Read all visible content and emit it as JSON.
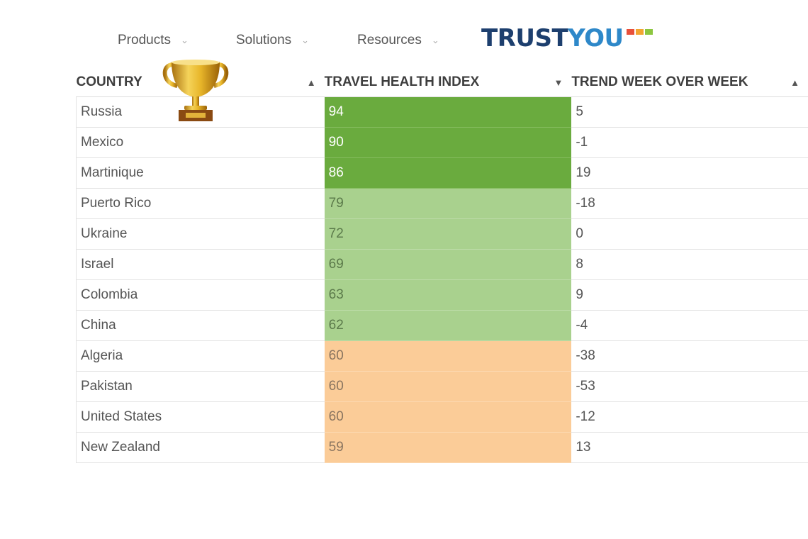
{
  "nav": {
    "items": [
      {
        "label": "Products",
        "icon": "chevron-down-icon"
      },
      {
        "label": "Solutions",
        "icon": "chevron-down-icon"
      },
      {
        "label": "Resources",
        "icon": "chevron-down-icon"
      }
    ]
  },
  "logo": {
    "text_part1": "TRUST",
    "text_part2": "YOU",
    "colors": {
      "dark": "#1d3f6e",
      "light": "#2e88c9",
      "bars": [
        "#e8503a",
        "#f2a530",
        "#8cc63f"
      ]
    }
  },
  "trophy": {
    "icon": "trophy-icon",
    "color": "#d9a520"
  },
  "table": {
    "headers": {
      "country": "COUNTRY",
      "index": "TRAVEL HEALTH INDEX",
      "trend": "TREND WEEK OVER WEEK"
    },
    "sort_icons": {
      "country": "sort-icon",
      "index": "sort-desc-icon",
      "trend": "sort-icon"
    },
    "level_colors": {
      "high": "#6aab3e",
      "mid": "#a9d18e",
      "low": "#fbcc98"
    },
    "rows": [
      {
        "country": "Russia",
        "index": "94",
        "trend": "5",
        "level": "high"
      },
      {
        "country": "Mexico",
        "index": "90",
        "trend": "-1",
        "level": "high"
      },
      {
        "country": "Martinique",
        "index": "86",
        "trend": "19",
        "level": "high"
      },
      {
        "country": "Puerto Rico",
        "index": "79",
        "trend": "-18",
        "level": "mid"
      },
      {
        "country": "Ukraine",
        "index": "72",
        "trend": "0",
        "level": "mid"
      },
      {
        "country": "Israel",
        "index": "69",
        "trend": "8",
        "level": "mid"
      },
      {
        "country": "Colombia",
        "index": "63",
        "trend": "9",
        "level": "mid"
      },
      {
        "country": "China",
        "index": "62",
        "trend": "-4",
        "level": "mid"
      },
      {
        "country": "Algeria",
        "index": "60",
        "trend": "-38",
        "level": "low"
      },
      {
        "country": "Pakistan",
        "index": "60",
        "trend": "-53",
        "level": "low"
      },
      {
        "country": "United States",
        "index": "60",
        "trend": "-12",
        "level": "low"
      },
      {
        "country": "New Zealand",
        "index": "59",
        "trend": "13",
        "level": "low"
      }
    ]
  }
}
